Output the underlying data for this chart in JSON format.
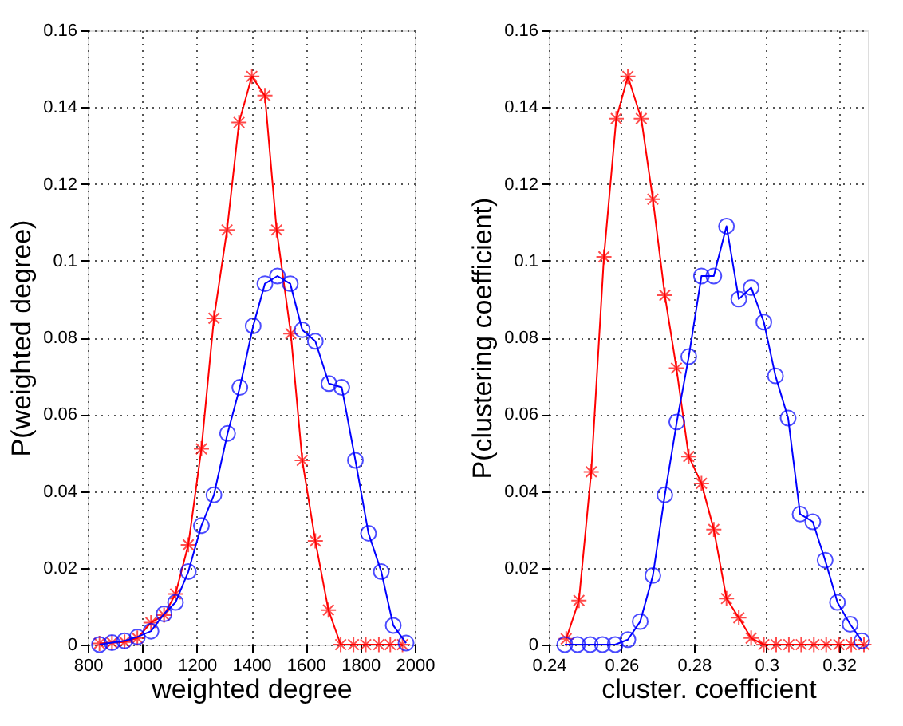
{
  "chart_data": [
    {
      "type": "line",
      "xlabel": "weighted degree",
      "ylabel": "P(weighted degree)",
      "xlim": [
        800,
        2000
      ],
      "ylim": [
        0,
        0.16
      ],
      "xticks": [
        800,
        1000,
        1200,
        1400,
        1600,
        1800,
        2000
      ],
      "yticks": [
        0,
        0.02,
        0.04,
        0.06,
        0.08,
        0.1,
        0.12,
        0.14,
        0.16
      ],
      "grid": true,
      "line_style": "solid",
      "series": [
        {
          "color": "#ff0000",
          "marker": "cross",
          "x": [
            843,
            889,
            935,
            982,
            1032,
            1080,
            1122,
            1169,
            1217,
            1263,
            1311,
            1355,
            1402,
            1450,
            1493,
            1545,
            1587,
            1635,
            1683,
            1728,
            1775,
            1820,
            1868,
            1910,
            1955
          ],
          "values": [
            0.0003,
            0.0005,
            0.0007,
            0.0017,
            0.0057,
            0.0077,
            0.0132,
            0.026,
            0.051,
            0.085,
            0.108,
            0.136,
            0.148,
            0.143,
            0.108,
            0.081,
            0.048,
            0.027,
            0.009,
            0,
            0,
            0,
            0,
            0,
            0
          ]
        },
        {
          "color": "#0000ff",
          "marker": "circle",
          "x": [
            843,
            889,
            935,
            982,
            1032,
            1080,
            1122,
            1169,
            1217,
            1263,
            1313,
            1358,
            1407,
            1450,
            1496,
            1543,
            1587,
            1635,
            1685,
            1732,
            1782,
            1830,
            1877,
            1921,
            1968
          ],
          "values": [
            0,
            0.0005,
            0.001,
            0.002,
            0.0035,
            0.008,
            0.011,
            0.019,
            0.031,
            0.039,
            0.055,
            0.067,
            0.083,
            0.094,
            0.096,
            0.094,
            0.082,
            0.079,
            0.068,
            0.067,
            0.048,
            0.029,
            0.019,
            0.005,
            0.0004
          ]
        }
      ]
    },
    {
      "type": "line",
      "xlabel": "cluster. coefficient",
      "ylabel": "P(clustering coefficient)",
      "xlim": [
        0.24,
        0.328
      ],
      "ylim": [
        0,
        0.16
      ],
      "xticks": [
        0.24,
        0.26,
        0.28,
        0.3,
        0.32
      ],
      "yticks": [
        0,
        0.02,
        0.04,
        0.06,
        0.08,
        0.1,
        0.12,
        0.14,
        0.16
      ],
      "grid": true,
      "line_style": "solid",
      "series": [
        {
          "color": "#ff0000",
          "marker": "cross",
          "x": [
            0.2448,
            0.2483,
            0.2517,
            0.2552,
            0.2586,
            0.2618,
            0.2655,
            0.2687,
            0.272,
            0.2752,
            0.2786,
            0.2821,
            0.2855,
            0.289,
            0.2924,
            0.2958,
            0.2993,
            0.3027,
            0.3062,
            0.3096,
            0.3131,
            0.3165,
            0.32,
            0.3234,
            0.3269
          ],
          "values": [
            0.0015,
            0.0115,
            0.045,
            0.101,
            0.137,
            0.148,
            0.137,
            0.116,
            0.091,
            0.072,
            0.049,
            0.042,
            0.03,
            0.012,
            0.007,
            0.0017,
            0,
            0,
            0,
            0,
            0,
            0,
            0,
            0,
            0
          ]
        },
        {
          "color": "#0000ff",
          "marker": "circle",
          "x": [
            0.2444,
            0.2479,
            0.2514,
            0.2548,
            0.2583,
            0.2618,
            0.2652,
            0.2687,
            0.272,
            0.2753,
            0.2786,
            0.2821,
            0.2855,
            0.289,
            0.2924,
            0.2958,
            0.2993,
            0.3025,
            0.306,
            0.3093,
            0.3128,
            0.3162,
            0.3196,
            0.3231,
            0.3263
          ],
          "values": [
            0,
            0,
            0,
            0,
            0,
            0.0013,
            0.006,
            0.018,
            0.039,
            0.058,
            0.075,
            0.096,
            0.096,
            0.109,
            0.09,
            0.093,
            0.084,
            0.07,
            0.059,
            0.034,
            0.032,
            0.022,
            0.011,
            0.0053,
            0.001
          ]
        }
      ]
    }
  ]
}
